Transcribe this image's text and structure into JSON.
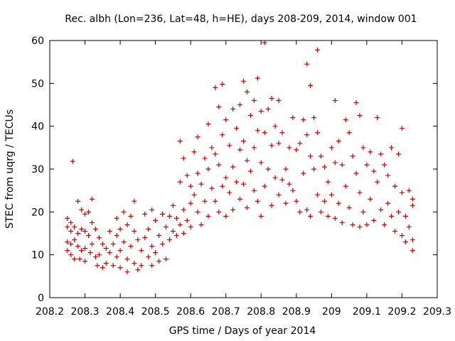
{
  "chart_data": {
    "type": "scatter",
    "title": "Rec. albh (Lon=236, Lat=48, h=HE), days 208-209, 2014, window 001",
    "xlabel": "GPS time / Days of year 2014",
    "ylabel": "STEC from uqrg / TECUs",
    "xlim": [
      208.2,
      209.3
    ],
    "ylim": [
      0,
      60
    ],
    "xticks": [
      "208.2",
      "208.3",
      "208.4",
      "208.5",
      "208.6",
      "208.7",
      "208.8",
      "208.9",
      "209",
      "209.1",
      "209.2",
      "209.3"
    ],
    "yticks": [
      "0",
      "10",
      "20",
      "30",
      "40",
      "50",
      "60"
    ],
    "grid": false,
    "series": [
      {
        "color": "#cc0000",
        "marker": "plus",
        "points": [
          [
            208.25,
            18.5
          ],
          [
            208.25,
            16.5
          ],
          [
            208.25,
            13.0
          ],
          [
            208.25,
            11.0
          ],
          [
            208.26,
            17.5
          ],
          [
            208.26,
            15.5
          ],
          [
            208.26,
            12.5
          ],
          [
            208.26,
            10.0
          ],
          [
            208.265,
            31.8
          ],
          [
            208.27,
            16.5
          ],
          [
            208.27,
            13.5
          ],
          [
            208.27,
            9.0
          ],
          [
            208.28,
            22.5
          ],
          [
            208.28,
            15.0
          ],
          [
            208.28,
            12.0
          ],
          [
            208.285,
            9.0
          ],
          [
            208.29,
            20.5
          ],
          [
            208.29,
            16.0
          ],
          [
            208.29,
            11.0
          ],
          [
            208.3,
            19.5
          ],
          [
            208.3,
            15.5
          ],
          [
            208.3,
            11.5
          ],
          [
            208.3,
            8.5
          ],
          [
            208.31,
            20.0
          ],
          [
            208.31,
            14.5
          ],
          [
            208.315,
            10.5
          ],
          [
            208.32,
            23.0
          ],
          [
            208.32,
            17.5
          ],
          [
            208.32,
            12.5
          ],
          [
            208.33,
            16.0
          ],
          [
            208.33,
            9.5
          ],
          [
            208.335,
            7.5
          ],
          [
            208.34,
            14.0
          ],
          [
            208.34,
            10.0
          ],
          [
            208.35,
            12.5
          ],
          [
            208.35,
            7.0
          ],
          [
            208.36,
            11.5
          ],
          [
            208.36,
            8.0
          ],
          [
            208.37,
            15.5
          ],
          [
            208.37,
            10.5
          ],
          [
            208.38,
            12.5
          ],
          [
            208.38,
            7.5
          ],
          [
            208.39,
            18.5
          ],
          [
            208.39,
            14.5
          ],
          [
            208.39,
            9.5
          ],
          [
            208.4,
            16.0
          ],
          [
            208.4,
            11.0
          ],
          [
            208.4,
            7.0
          ],
          [
            208.41,
            20.0
          ],
          [
            208.41,
            13.0
          ],
          [
            208.42,
            17.0
          ],
          [
            208.42,
            9.0
          ],
          [
            208.42,
            6.0
          ],
          [
            208.43,
            19.0
          ],
          [
            208.43,
            12.0
          ],
          [
            208.44,
            22.5
          ],
          [
            208.44,
            15.5
          ],
          [
            208.44,
            8.0
          ],
          [
            208.45,
            13.5
          ],
          [
            208.45,
            6.5
          ],
          [
            208.46,
            11.0
          ],
          [
            208.46,
            7.5
          ],
          [
            208.47,
            19.5
          ],
          [
            208.47,
            14.0
          ],
          [
            208.48,
            16.0
          ],
          [
            208.48,
            9.5
          ],
          [
            208.49,
            20.5
          ],
          [
            208.49,
            12.0
          ],
          [
            208.49,
            7.5
          ],
          [
            208.5,
            18.0
          ],
          [
            208.5,
            10.5
          ],
          [
            208.51,
            14.5
          ],
          [
            208.51,
            8.5
          ],
          [
            208.52,
            19.5
          ],
          [
            208.52,
            12.5
          ],
          [
            208.53,
            16.5
          ],
          [
            208.53,
            9.0
          ],
          [
            208.54,
            19.0
          ],
          [
            208.54,
            13.5
          ],
          [
            208.55,
            21.5
          ],
          [
            208.55,
            15.5
          ],
          [
            208.56,
            18.5
          ],
          [
            208.56,
            14.5
          ],
          [
            208.57,
            36.5
          ],
          [
            208.57,
            27.0
          ],
          [
            208.57,
            17.0
          ],
          [
            208.58,
            32.5
          ],
          [
            208.58,
            20.5
          ],
          [
            208.58,
            15.0
          ],
          [
            208.59,
            28.5
          ],
          [
            208.59,
            18.0
          ],
          [
            208.6,
            26.0
          ],
          [
            208.6,
            22.0
          ],
          [
            208.6,
            16.5
          ],
          [
            208.61,
            34.0
          ],
          [
            208.61,
            24.0
          ],
          [
            208.62,
            37.5
          ],
          [
            208.62,
            29.0
          ],
          [
            208.62,
            20.0
          ],
          [
            208.63,
            26.5
          ],
          [
            208.63,
            17.0
          ],
          [
            208.64,
            32.5
          ],
          [
            208.64,
            22.5
          ],
          [
            208.65,
            40.5
          ],
          [
            208.65,
            30.0
          ],
          [
            208.65,
            19.0
          ],
          [
            208.66,
            35.0
          ],
          [
            208.66,
            25.5
          ],
          [
            208.67,
            49.0
          ],
          [
            208.67,
            33.5
          ],
          [
            208.67,
            22.5
          ],
          [
            208.68,
            44.5
          ],
          [
            208.68,
            31.0
          ],
          [
            208.68,
            20.0
          ],
          [
            208.69,
            49.8
          ],
          [
            208.69,
            38.0
          ],
          [
            208.69,
            26.0
          ],
          [
            208.7,
            41.5
          ],
          [
            208.7,
            28.0
          ],
          [
            208.7,
            19.0
          ],
          [
            208.71,
            35.5
          ],
          [
            208.71,
            24.5
          ],
          [
            208.72,
            44.0
          ],
          [
            208.72,
            30.5
          ],
          [
            208.72,
            20.5
          ],
          [
            208.73,
            39.5
          ],
          [
            208.73,
            27.0
          ],
          [
            208.74,
            45.0
          ],
          [
            208.74,
            34.5
          ],
          [
            208.74,
            23.0
          ],
          [
            208.75,
            50.5
          ],
          [
            208.75,
            36.5
          ],
          [
            208.75,
            26.5
          ],
          [
            208.76,
            48.0
          ],
          [
            208.76,
            32.0
          ],
          [
            208.76,
            21.0
          ],
          [
            208.77,
            42.5
          ],
          [
            208.77,
            29.5
          ],
          [
            208.78,
            46.0
          ],
          [
            208.78,
            35.0
          ],
          [
            208.78,
            25.0
          ],
          [
            208.79,
            51.2
          ],
          [
            208.79,
            39.0
          ],
          [
            208.79,
            22.5
          ],
          [
            208.8,
            43.5
          ],
          [
            208.8,
            31.5
          ],
          [
            208.8,
            19.0
          ],
          [
            208.81,
            59.5
          ],
          [
            208.81,
            38.5
          ],
          [
            208.81,
            26.0
          ],
          [
            208.82,
            44.0
          ],
          [
            208.82,
            30.0
          ],
          [
            208.83,
            46.5
          ],
          [
            208.83,
            35.5
          ],
          [
            208.83,
            21.5
          ],
          [
            208.84,
            40.0
          ],
          [
            208.84,
            28.0
          ],
          [
            208.85,
            46.0
          ],
          [
            208.85,
            36.0
          ],
          [
            208.85,
            24.0
          ],
          [
            208.86,
            38.5
          ],
          [
            208.86,
            27.5
          ],
          [
            208.87,
            30.0
          ],
          [
            208.87,
            22.0
          ],
          [
            208.88,
            35.0
          ],
          [
            208.88,
            26.5
          ],
          [
            208.89,
            42.0
          ],
          [
            208.89,
            25.0
          ],
          [
            208.9,
            34.5
          ],
          [
            208.9,
            22.5
          ],
          [
            208.91,
            36.0
          ],
          [
            208.91,
            20.0
          ],
          [
            208.92,
            41.5
          ],
          [
            208.92,
            29.0
          ],
          [
            208.93,
            54.5
          ],
          [
            208.93,
            38.0
          ],
          [
            208.93,
            20.5
          ],
          [
            208.94,
            49.5
          ],
          [
            208.94,
            33.0
          ],
          [
            208.94,
            19.0
          ],
          [
            208.95,
            42.0
          ],
          [
            208.95,
            30.0
          ],
          [
            208.96,
            57.8
          ],
          [
            208.96,
            38.5
          ],
          [
            208.96,
            24.0
          ],
          [
            208.97,
            33.0
          ],
          [
            208.97,
            20.0
          ],
          [
            208.98,
            30.5
          ],
          [
            208.98,
            22.5
          ],
          [
            208.99,
            27.0
          ],
          [
            208.99,
            19.0
          ],
          [
            209.0,
            35.0
          ],
          [
            209.0,
            24.0
          ],
          [
            209.01,
            46.0
          ],
          [
            209.01,
            31.5
          ],
          [
            209.01,
            18.5
          ],
          [
            209.02,
            36.5
          ],
          [
            209.02,
            22.0
          ],
          [
            209.03,
            31.0
          ],
          [
            209.03,
            17.5
          ],
          [
            209.04,
            41.5
          ],
          [
            209.04,
            26.0
          ],
          [
            209.05,
            38.5
          ],
          [
            209.05,
            21.0
          ],
          [
            209.06,
            33.0
          ],
          [
            209.06,
            17.0
          ],
          [
            209.07,
            45.5
          ],
          [
            209.07,
            29.0
          ],
          [
            209.08,
            42.5
          ],
          [
            209.08,
            24.5
          ],
          [
            209.08,
            16.5
          ],
          [
            209.09,
            35.0
          ],
          [
            209.09,
            20.0
          ],
          [
            209.1,
            31.0
          ],
          [
            209.1,
            17.0
          ],
          [
            209.11,
            34.0
          ],
          [
            209.11,
            23.0
          ],
          [
            209.12,
            29.5
          ],
          [
            209.12,
            18.0
          ],
          [
            209.13,
            42.0
          ],
          [
            209.13,
            27.0
          ],
          [
            209.14,
            33.5
          ],
          [
            209.14,
            20.5
          ],
          [
            209.15,
            31.0
          ],
          [
            209.15,
            17.0
          ],
          [
            209.16,
            28.5
          ],
          [
            209.16,
            22.0
          ],
          [
            209.17,
            35.0
          ],
          [
            209.17,
            19.0
          ],
          [
            209.18,
            26.0
          ],
          [
            209.18,
            15.5
          ],
          [
            209.19,
            33.5
          ],
          [
            209.19,
            20.0
          ],
          [
            209.2,
            39.5
          ],
          [
            209.2,
            24.5
          ],
          [
            209.2,
            14.5
          ],
          [
            209.21,
            19.0
          ],
          [
            209.21,
            13.0
          ],
          [
            209.22,
            25.0
          ],
          [
            209.22,
            16.5
          ],
          [
            209.23,
            23.0
          ],
          [
            209.23,
            21.5
          ],
          [
            209.23,
            13.5
          ],
          [
            209.23,
            11.0
          ]
        ]
      }
    ]
  }
}
